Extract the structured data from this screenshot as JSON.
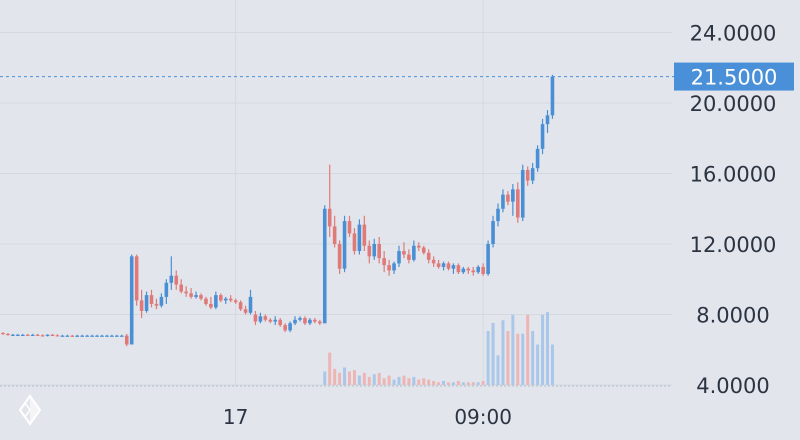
{
  "chart_data": {
    "type": "candlestick",
    "y_axis": {
      "position": "right",
      "ticks": [
        "24.0000",
        "20.0000",
        "16.0000",
        "12.0000",
        "8.0000",
        "4.0000"
      ],
      "tick_values": [
        24,
        20,
        16,
        12,
        8,
        4
      ],
      "range": [
        4.0,
        26.0
      ]
    },
    "x_axis": {
      "ticks": [
        {
          "label": "17",
          "index": 47
        },
        {
          "label": "09:00",
          "index": 97
        }
      ]
    },
    "current_price": {
      "value": 21.5,
      "label": "21.5000",
      "color": "#4a90d9"
    },
    "colors": {
      "up": "#4a8fd4",
      "down": "#e07a78",
      "volume_up": "#aac7ea",
      "volume_down": "#edb5b4",
      "grid": "#d4d9e0"
    },
    "candles": [
      [
        6.95,
        7.0,
        6.85,
        6.9
      ],
      [
        6.9,
        6.95,
        6.8,
        6.85
      ],
      [
        6.85,
        6.9,
        6.8,
        6.85
      ],
      [
        6.85,
        6.9,
        6.8,
        6.85
      ],
      [
        6.85,
        6.9,
        6.8,
        6.85
      ],
      [
        6.85,
        6.9,
        6.78,
        6.82
      ],
      [
        6.82,
        6.9,
        6.78,
        6.85
      ],
      [
        6.85,
        6.9,
        6.8,
        6.82
      ],
      [
        6.82,
        6.88,
        6.75,
        6.8
      ],
      [
        6.8,
        6.88,
        6.75,
        6.85
      ],
      [
        6.85,
        6.9,
        6.78,
        6.82
      ],
      [
        6.82,
        6.88,
        6.76,
        6.8
      ],
      [
        6.8,
        6.85,
        6.75,
        6.8
      ],
      [
        6.8,
        6.85,
        6.75,
        6.8
      ],
      [
        6.8,
        6.85,
        6.72,
        6.78
      ],
      [
        6.78,
        6.85,
        6.72,
        6.8
      ],
      [
        6.8,
        6.85,
        6.75,
        6.8
      ],
      [
        6.8,
        6.85,
        6.75,
        6.8
      ],
      [
        6.8,
        6.85,
        6.75,
        6.8
      ],
      [
        6.8,
        6.85,
        6.75,
        6.8
      ],
      [
        6.8,
        6.85,
        6.75,
        6.8
      ],
      [
        6.8,
        6.85,
        6.75,
        6.8
      ],
      [
        6.8,
        6.85,
        6.75,
        6.8
      ],
      [
        6.8,
        6.85,
        6.75,
        6.8
      ],
      [
        6.8,
        6.85,
        6.75,
        6.8
      ],
      [
        6.8,
        6.9,
        6.2,
        6.3
      ],
      [
        6.3,
        11.4,
        6.3,
        11.3
      ],
      [
        11.3,
        11.4,
        8.5,
        8.8
      ],
      [
        8.8,
        9.4,
        7.8,
        8.2
      ],
      [
        8.2,
        9.3,
        8.1,
        9.1
      ],
      [
        9.1,
        9.4,
        8.4,
        8.6
      ],
      [
        8.6,
        8.9,
        8.3,
        8.5
      ],
      [
        8.5,
        9.2,
        8.4,
        9.0
      ],
      [
        9.0,
        10.0,
        8.6,
        9.8
      ],
      [
        9.8,
        11.3,
        9.4,
        10.2
      ],
      [
        10.2,
        10.5,
        9.4,
        9.7
      ],
      [
        9.7,
        10.0,
        9.2,
        9.3
      ],
      [
        9.3,
        9.6,
        9.0,
        9.2
      ],
      [
        9.2,
        9.5,
        8.9,
        9.0
      ],
      [
        9.0,
        9.3,
        8.9,
        9.1
      ],
      [
        9.1,
        9.2,
        8.8,
        8.9
      ],
      [
        8.9,
        9.0,
        8.5,
        8.6
      ],
      [
        8.6,
        9.0,
        8.3,
        8.4
      ],
      [
        8.4,
        9.3,
        8.3,
        9.1
      ],
      [
        9.1,
        9.2,
        8.7,
        8.8
      ],
      [
        8.8,
        9.0,
        8.6,
        8.9
      ],
      [
        8.9,
        9.1,
        8.7,
        8.8
      ],
      [
        8.8,
        8.9,
        8.6,
        8.7
      ],
      [
        8.7,
        8.8,
        8.2,
        8.3
      ],
      [
        8.3,
        8.5,
        8.0,
        8.1
      ],
      [
        8.1,
        9.4,
        8.0,
        9.0
      ],
      [
        8.0,
        8.2,
        7.4,
        7.6
      ],
      [
        7.6,
        8.1,
        7.5,
        7.9
      ],
      [
        7.9,
        8.0,
        7.6,
        7.7
      ],
      [
        7.7,
        7.8,
        7.5,
        7.6
      ],
      [
        7.6,
        7.9,
        7.4,
        7.7
      ],
      [
        7.7,
        7.8,
        7.3,
        7.4
      ],
      [
        7.4,
        7.5,
        7.0,
        7.1
      ],
      [
        7.1,
        7.6,
        7.0,
        7.5
      ],
      [
        7.5,
        7.9,
        7.4,
        7.7
      ],
      [
        7.7,
        7.9,
        7.6,
        7.8
      ],
      [
        7.8,
        7.9,
        7.4,
        7.5
      ],
      [
        7.5,
        7.8,
        7.4,
        7.7
      ],
      [
        7.7,
        7.8,
        7.5,
        7.6
      ],
      [
        7.6,
        7.7,
        7.4,
        7.5
      ],
      [
        7.5,
        14.2,
        7.5,
        14.0
      ],
      [
        14.0,
        16.5,
        12.4,
        13.0
      ],
      [
        13.0,
        13.6,
        11.8,
        12.0
      ],
      [
        12.0,
        12.2,
        10.3,
        10.6
      ],
      [
        10.6,
        13.6,
        10.4,
        13.3
      ],
      [
        13.3,
        13.6,
        12.4,
        12.6
      ],
      [
        12.6,
        12.9,
        11.4,
        11.6
      ],
      [
        11.6,
        13.4,
        11.4,
        13.1
      ],
      [
        13.1,
        13.6,
        11.6,
        11.9
      ],
      [
        11.9,
        12.2,
        10.9,
        11.3
      ],
      [
        11.3,
        12.3,
        11.1,
        12.0
      ],
      [
        12.0,
        12.4,
        10.9,
        11.2
      ],
      [
        11.2,
        11.6,
        10.4,
        10.8
      ],
      [
        10.8,
        11.1,
        10.2,
        10.5
      ],
      [
        10.5,
        11.0,
        10.3,
        10.9
      ],
      [
        10.9,
        11.9,
        10.7,
        11.6
      ],
      [
        11.6,
        12.1,
        11.2,
        11.4
      ],
      [
        11.4,
        11.7,
        10.9,
        11.1
      ],
      [
        11.1,
        12.2,
        11.0,
        11.9
      ],
      [
        11.9,
        12.1,
        11.6,
        11.8
      ],
      [
        11.8,
        11.9,
        11.4,
        11.5
      ],
      [
        11.5,
        11.7,
        10.9,
        11.1
      ],
      [
        11.1,
        11.3,
        10.7,
        10.9
      ],
      [
        10.9,
        11.1,
        10.6,
        10.7
      ],
      [
        10.7,
        11.0,
        10.5,
        10.9
      ],
      [
        10.9,
        11.0,
        10.5,
        10.6
      ],
      [
        10.6,
        10.9,
        10.3,
        10.8
      ],
      [
        10.8,
        10.9,
        10.3,
        10.4
      ],
      [
        10.4,
        10.7,
        10.3,
        10.6
      ],
      [
        10.6,
        10.7,
        10.3,
        10.5
      ],
      [
        10.5,
        10.7,
        10.2,
        10.4
      ],
      [
        10.4,
        10.8,
        10.3,
        10.7
      ],
      [
        10.7,
        10.9,
        10.2,
        10.3
      ],
      [
        10.3,
        12.2,
        10.2,
        12.0
      ],
      [
        12.0,
        13.6,
        11.8,
        13.3
      ],
      [
        13.3,
        14.3,
        13.0,
        14.0
      ],
      [
        14.0,
        15.1,
        13.8,
        14.8
      ],
      [
        14.8,
        15.0,
        14.2,
        14.4
      ],
      [
        14.4,
        15.4,
        13.6,
        15.1
      ],
      [
        15.1,
        15.5,
        13.2,
        13.5
      ],
      [
        13.5,
        16.5,
        13.3,
        16.2
      ],
      [
        16.2,
        16.4,
        15.3,
        15.6
      ],
      [
        15.6,
        16.6,
        15.4,
        16.3
      ],
      [
        16.3,
        17.6,
        16.1,
        17.4
      ],
      [
        17.4,
        19.1,
        17.1,
        18.8
      ],
      [
        18.8,
        19.6,
        18.3,
        19.3
      ],
      [
        19.3,
        21.6,
        19.1,
        21.5
      ]
    ],
    "volume": [
      0,
      0,
      0,
      0,
      0,
      0,
      0,
      0,
      0,
      0,
      0,
      0,
      0,
      0,
      0,
      0,
      0,
      0,
      0,
      0,
      0,
      0,
      0,
      0,
      0,
      0,
      0,
      0,
      0,
      0,
      0,
      0,
      0,
      0,
      0,
      0,
      0,
      0,
      0,
      0,
      0,
      0,
      0,
      0,
      0,
      0,
      0,
      0,
      0,
      0,
      0,
      0,
      0,
      0,
      0,
      0,
      0,
      0,
      0,
      0,
      0,
      0,
      0,
      0,
      0,
      10,
      24,
      12,
      9,
      13,
      10,
      11,
      7,
      9,
      6,
      8,
      9,
      5,
      7,
      4,
      6,
      7,
      5,
      6,
      4,
      5,
      4,
      3,
      2,
      3,
      2,
      2,
      3,
      2,
      2,
      2,
      2,
      3,
      40,
      46,
      22,
      48,
      40,
      52,
      38,
      38,
      52,
      40,
      30,
      52,
      54,
      30
    ]
  }
}
